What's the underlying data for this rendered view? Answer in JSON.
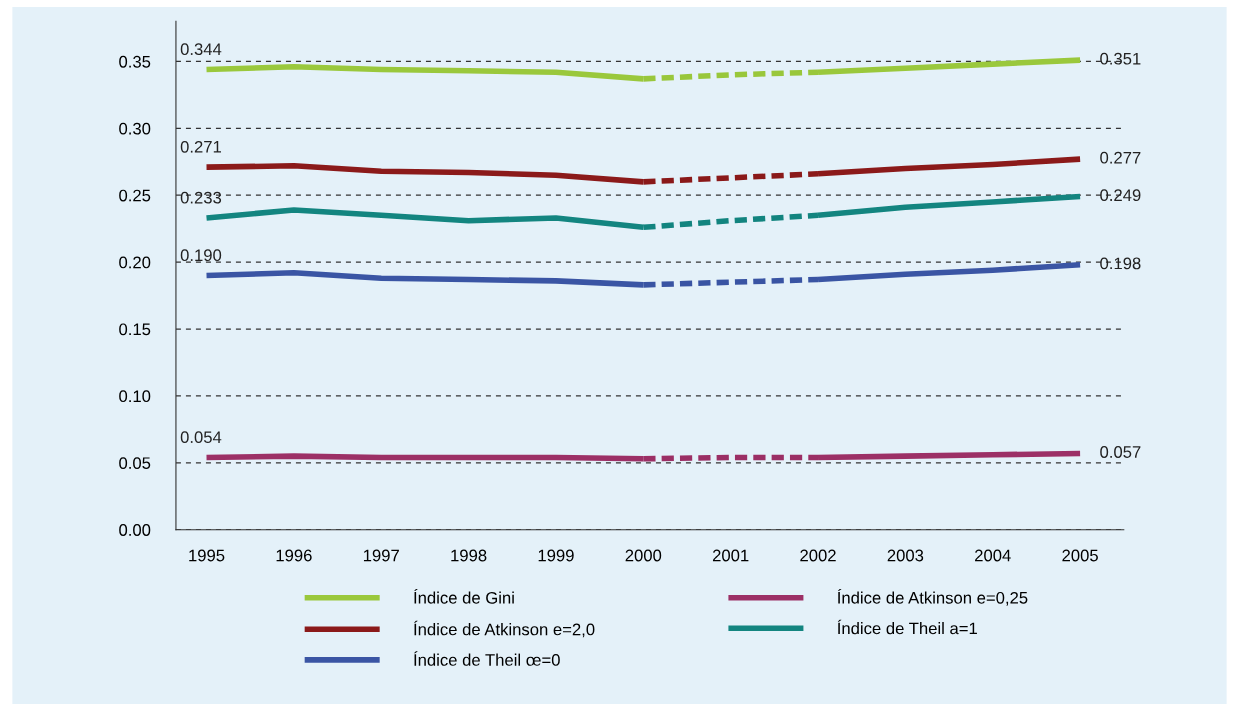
{
  "chart_data": {
    "type": "line",
    "categories": [
      "1995",
      "1996",
      "1997",
      "1998",
      "1999",
      "2000",
      "2001",
      "2002",
      "2003",
      "2004",
      "2005"
    ],
    "ylim": [
      0,
      0.38
    ],
    "yticks": [
      {
        "value": 0,
        "label": "0.00"
      },
      {
        "value": 0.05,
        "label": "0.05"
      },
      {
        "value": 0.1,
        "label": "0.10"
      },
      {
        "value": 0.15,
        "label": "0.15"
      },
      {
        "value": 0.2,
        "label": "0.20"
      },
      {
        "value": 0.25,
        "label": "0.25"
      },
      {
        "value": 0.3,
        "label": "0.30"
      },
      {
        "value": 0.35,
        "label": "0.35"
      }
    ],
    "grid": "y",
    "legend": "bottom",
    "line_style": "solid",
    "marker": "none",
    "series": [
      {
        "name": "Índice de Gini",
        "color": "#9ac83c",
        "values": [
          0.344,
          0.346,
          0.344,
          0.343,
          0.342,
          0.337,
          null,
          0.342,
          0.345,
          0.348,
          0.351
        ],
        "value_labels": [
          "0.344",
          null,
          null,
          null,
          null,
          null,
          null,
          null,
          null,
          null,
          "0.351"
        ]
      },
      {
        "name": "Índice de Atkinson e=0,25",
        "color": "#9c3066",
        "values": [
          0.054,
          0.055,
          0.054,
          0.054,
          0.054,
          0.053,
          null,
          0.054,
          0.055,
          0.056,
          0.057
        ],
        "value_labels": [
          "0.054",
          null,
          null,
          null,
          null,
          null,
          null,
          null,
          null,
          null,
          "0.057"
        ]
      },
      {
        "name": "Índice de Atkinson e=2,0",
        "color": "#8b1a1a",
        "values": [
          0.271,
          0.272,
          0.268,
          0.267,
          0.265,
          0.26,
          null,
          0.266,
          0.27,
          0.273,
          0.277
        ],
        "value_labels": [
          "0.271",
          null,
          null,
          null,
          null,
          null,
          null,
          null,
          null,
          null,
          "0.277"
        ]
      },
      {
        "name": "Índice de Theil a=1",
        "color": "#138580",
        "values": [
          0.233,
          0.239,
          0.235,
          0.231,
          0.233,
          0.226,
          null,
          0.235,
          0.241,
          0.245,
          0.249
        ],
        "value_labels": [
          "0.233",
          null,
          null,
          null,
          null,
          null,
          null,
          null,
          null,
          null,
          "0.249"
        ]
      },
      {
        "name": "Índice de Theil œ=0",
        "color": "#3a55a4",
        "values": [
          0.19,
          0.192,
          0.188,
          0.187,
          0.186,
          0.183,
          null,
          0.187,
          0.191,
          0.194,
          0.198
        ],
        "value_labels": [
          "0.190",
          null,
          null,
          null,
          null,
          null,
          null,
          null,
          null,
          null,
          "0.198"
        ]
      },
      {
        "color": "#99c73b",
        "line_style": "dashed",
        "values": [
          null,
          null,
          null,
          null,
          null,
          0.337,
          0.34,
          0.342,
          null,
          null,
          null
        ]
      },
      {
        "color": "#9b2f65",
        "line_style": "dashed",
        "values": [
          null,
          null,
          null,
          null,
          null,
          0.053,
          0.054,
          0.054,
          null,
          null,
          null
        ]
      },
      {
        "color": "#8a1919",
        "line_style": "dashed",
        "values": [
          null,
          null,
          null,
          null,
          null,
          0.26,
          0.263,
          0.266,
          null,
          null,
          null
        ]
      },
      {
        "color": "#12847f",
        "line_style": "dashed",
        "values": [
          null,
          null,
          null,
          null,
          null,
          0.226,
          0.231,
          0.235,
          null,
          null,
          null
        ]
      },
      {
        "color": "#3954a3",
        "line_style": "dashed",
        "values": [
          null,
          null,
          null,
          null,
          null,
          0.183,
          0.185,
          0.187,
          null,
          null,
          null
        ]
      }
    ]
  }
}
